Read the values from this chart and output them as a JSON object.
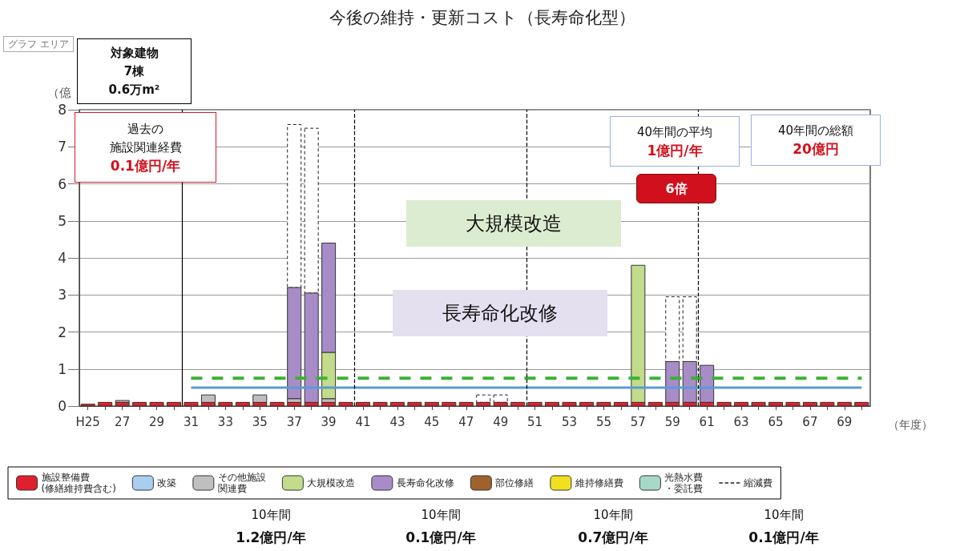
{
  "chart_data": {
    "type": "bar",
    "title": "今後の維持・更新コスト（長寿命化型）",
    "ylabel": "（億",
    "xlabel": "（年度）",
    "x": [
      25,
      26,
      27,
      28,
      29,
      30,
      31,
      32,
      33,
      34,
      35,
      36,
      37,
      38,
      39,
      40,
      41,
      42,
      43,
      44,
      45,
      46,
      47,
      48,
      49,
      50,
      51,
      52,
      53,
      54,
      55,
      56,
      57,
      58,
      59,
      60,
      61,
      62,
      63,
      64,
      65,
      66,
      67,
      68,
      69,
      70
    ],
    "stacked": true,
    "series": [
      {
        "name": "施設整備費(修繕維持費含む)",
        "color": "#e0202c",
        "values": [
          0.05,
          0.1,
          0.1,
          0.1,
          0.1,
          0.1,
          0.1,
          0.1,
          0.1,
          0.1,
          0.1,
          0.1,
          0.1,
          0.1,
          0.1,
          0.1,
          0.1,
          0.1,
          0.1,
          0.1,
          0.1,
          0.1,
          0.1,
          0.1,
          0.1,
          0.1,
          0.1,
          0.1,
          0.1,
          0.1,
          0.1,
          0.1,
          0.1,
          0.1,
          0.1,
          0.1,
          0.1,
          0.1,
          0.1,
          0.1,
          0.1,
          0.1,
          0.1,
          0.1,
          0.1,
          0.1
        ]
      },
      {
        "name": "改築",
        "color": "#a8cff0",
        "values": [
          null,
          null,
          null,
          null,
          null,
          null,
          null,
          null,
          null,
          null,
          null,
          null,
          null,
          null,
          null,
          null,
          null,
          null,
          null,
          null,
          null,
          null,
          null,
          null,
          null,
          null,
          null,
          null,
          null,
          null,
          null,
          null,
          null,
          null,
          null,
          null,
          null,
          null,
          null,
          null,
          null,
          null,
          null,
          null,
          null,
          null
        ]
      },
      {
        "name": "その他施設関連費",
        "color": "#bfbfbf",
        "values": [
          null,
          null,
          0.05,
          null,
          null,
          null,
          null,
          0.2,
          null,
          null,
          0.2,
          null,
          0.1,
          null,
          0.1,
          null,
          null,
          null,
          null,
          null,
          null,
          null,
          null,
          null,
          null,
          null,
          null,
          null,
          null,
          null,
          null,
          null,
          null,
          null,
          null,
          null,
          null,
          null,
          null,
          null,
          null,
          null,
          null,
          null,
          null,
          null
        ]
      },
      {
        "name": "大規模改造",
        "color": "#c3dc8c",
        "values": [
          null,
          null,
          null,
          null,
          null,
          null,
          null,
          null,
          null,
          null,
          null,
          null,
          null,
          null,
          1.25,
          null,
          null,
          null,
          null,
          null,
          null,
          null,
          null,
          null,
          null,
          null,
          null,
          null,
          null,
          null,
          null,
          null,
          3.7,
          null,
          null,
          null,
          null,
          null,
          null,
          null,
          null,
          null,
          null,
          null,
          null,
          null
        ]
      },
      {
        "name": "長寿命化改修",
        "color": "#a88cc8",
        "values": [
          null,
          null,
          null,
          null,
          null,
          null,
          null,
          null,
          null,
          null,
          null,
          null,
          3.0,
          2.95,
          2.95,
          null,
          null,
          null,
          null,
          null,
          null,
          null,
          null,
          null,
          null,
          null,
          null,
          null,
          null,
          null,
          null,
          null,
          null,
          null,
          1.1,
          1.1,
          1.0,
          null,
          null,
          null,
          null,
          null,
          null,
          null,
          null,
          null
        ]
      },
      {
        "name": "部位修繕",
        "color": "#a0622d",
        "values": [
          null,
          null,
          null,
          null,
          null,
          null,
          null,
          null,
          null,
          null,
          null,
          null,
          null,
          null,
          null,
          null,
          null,
          null,
          null,
          null,
          null,
          null,
          null,
          null,
          null,
          null,
          null,
          null,
          null,
          null,
          null,
          null,
          null,
          null,
          null,
          null,
          null,
          null,
          null,
          null,
          null,
          null,
          null,
          null,
          null,
          null
        ]
      },
      {
        "name": "維持修繕費",
        "color": "#f0e020",
        "values": [
          null,
          null,
          null,
          null,
          null,
          null,
          null,
          null,
          null,
          null,
          null,
          null,
          null,
          null,
          null,
          null,
          null,
          null,
          null,
          null,
          null,
          null,
          null,
          null,
          null,
          null,
          null,
          null,
          null,
          null,
          null,
          null,
          null,
          null,
          null,
          null,
          null,
          null,
          null,
          null,
          null,
          null,
          null,
          null,
          null,
          null
        ]
      },
      {
        "name": "光熱水費・委託費",
        "color": "#a8d8c8",
        "values": [
          null,
          null,
          null,
          null,
          null,
          null,
          null,
          null,
          null,
          null,
          null,
          null,
          null,
          null,
          null,
          null,
          null,
          null,
          null,
          null,
          null,
          null,
          null,
          null,
          null,
          null,
          null,
          null,
          null,
          null,
          null,
          null,
          null,
          null,
          null,
          null,
          null,
          null,
          null,
          null,
          null,
          null,
          null,
          null,
          null,
          null
        ]
      },
      {
        "name": "縮減費",
        "color": "#222222",
        "line_style": "dashed",
        "values": [
          null,
          null,
          null,
          null,
          null,
          null,
          null,
          null,
          null,
          null,
          null,
          null,
          4.4,
          4.45,
          null,
          null,
          null,
          null,
          null,
          null,
          null,
          null,
          null,
          0.2,
          0.2,
          null,
          null,
          null,
          null,
          null,
          null,
          null,
          null,
          null,
          1.75,
          1.75,
          null,
          null,
          null,
          null,
          null,
          null,
          null,
          null,
          null,
          null
        ]
      },
      {
        "type": "line",
        "color": "#5b9bd5",
        "line_style": "solid",
        "values": [
          null,
          null,
          null,
          null,
          null,
          null,
          0.5,
          0.5,
          0.5,
          0.5,
          0.5,
          0.5,
          0.5,
          0.5,
          0.5,
          0.5,
          0.5,
          0.5,
          0.5,
          0.5,
          0.5,
          0.5,
          0.5,
          0.5,
          0.5,
          0.5,
          0.5,
          0.5,
          0.5,
          0.5,
          0.5,
          0.5,
          0.5,
          0.5,
          0.5,
          0.5,
          0.5,
          0.5,
          0.5,
          0.5,
          0.5,
          0.5,
          0.5,
          0.5,
          0.5,
          0.5
        ]
      },
      {
        "type": "line",
        "color": "#3cb034",
        "line_style": "dashed",
        "values": [
          null,
          null,
          null,
          null,
          null,
          null,
          0.75,
          0.75,
          0.75,
          0.75,
          0.75,
          0.75,
          0.75,
          0.75,
          0.75,
          0.75,
          0.75,
          0.75,
          0.75,
          0.75,
          0.75,
          0.75,
          0.75,
          0.75,
          0.75,
          0.75,
          0.75,
          0.75,
          0.75,
          0.75,
          0.75,
          0.75,
          0.75,
          0.75,
          0.75,
          0.75,
          0.75,
          0.75,
          0.75,
          0.75,
          0.75,
          0.75,
          0.75,
          0.75,
          0.75,
          0.75
        ]
      }
    ],
    "xlim": [
      24.5,
      70.5
    ],
    "xticks": [
      {
        "value": 25,
        "label": "H25"
      },
      {
        "value": 26,
        "label": null
      },
      27,
      {
        "value": 28,
        "label": null
      },
      29,
      {
        "value": 30,
        "label": null
      },
      31,
      {
        "value": 32,
        "label": null
      },
      33,
      {
        "value": 34,
        "label": null
      },
      35,
      {
        "value": 36,
        "label": null
      },
      37,
      {
        "value": 38,
        "label": null
      },
      39,
      {
        "value": 40,
        "label": null
      },
      41,
      {
        "value": 42,
        "label": null
      },
      43,
      {
        "value": 44,
        "label": null
      },
      45,
      {
        "value": 46,
        "label": null
      },
      47,
      {
        "value": 48,
        "label": null
      },
      49,
      {
        "value": 50,
        "label": null
      },
      51,
      {
        "value": 52,
        "label": null
      },
      53,
      {
        "value": 54,
        "label": null
      },
      55,
      {
        "value": 56,
        "label": null
      },
      57,
      {
        "value": 58,
        "label": null
      },
      59,
      {
        "value": 60,
        "label": null
      },
      61,
      {
        "value": 62,
        "label": null
      },
      63,
      {
        "value": 64,
        "label": null
      },
      65,
      {
        "value": 66,
        "label": null
      },
      67,
      {
        "value": 68,
        "label": null
      },
      69,
      {
        "value": 70,
        "label": null
      }
    ],
    "ylim": [
      0,
      8
    ],
    "yticks": [
      0,
      1,
      2,
      3,
      4,
      5,
      6,
      7,
      8
    ],
    "grid": "y",
    "legend": "bottom",
    "ref_lines": [
      {
        "axis": "x",
        "value": 30.5,
        "color": "#000000",
        "line_style": "solid"
      },
      {
        "axis": "x",
        "value": 40.5,
        "color": "#000000",
        "line_style": "dashed"
      },
      {
        "axis": "x",
        "value": 50.5,
        "color": "#000000",
        "line_style": "dashed"
      },
      {
        "axis": "x",
        "value": 60.5,
        "color": "#000000",
        "line_style": "dashed"
      }
    ],
    "annotations": [
      "グラフ エリア",
      "対象建物",
      "7棟",
      "0.6万m²",
      "過去の",
      "施設関連経費",
      "0.1億円/年",
      "40年間の平均",
      "1億円/年",
      "40年間の総額",
      "20億円",
      "6倍",
      "大規模改造",
      "長寿命化改修",
      "10年間",
      "1.2億円/年",
      "10年間",
      "0.1億円/年",
      "10年間",
      "0.7億円/年",
      "10年間",
      "0.1億円/年"
    ]
  }
}
